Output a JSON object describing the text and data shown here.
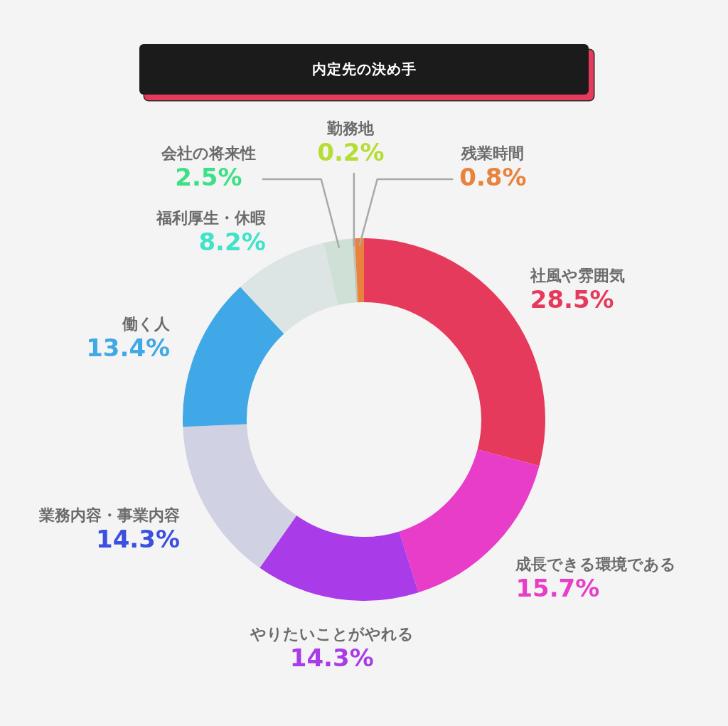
{
  "chart_data": {
    "type": "donut",
    "title": "内定先の決め手",
    "categories": [
      "社風や雰囲気",
      "成長できる環境である",
      "やりたいことがやれる",
      "業務内容・事業内容",
      "働く人",
      "福利厚生・休暇",
      "会社の将来性",
      "勤務地",
      "残業時間"
    ],
    "values": [
      28.5,
      15.7,
      14.3,
      14.3,
      13.4,
      8.2,
      2.5,
      0.2,
      0.8
    ],
    "value_labels": [
      "28.5%",
      "15.7%",
      "14.3%",
      "14.3%",
      "13.4%",
      "8.2%",
      "2.5%",
      "0.2%",
      "0.8%"
    ],
    "colors": [
      "#e63a5c",
      "#e83dc8",
      "#a93be8",
      "#d0d1e2",
      "#40a8e6",
      "#dce5e3",
      "#cfe0d6",
      "#c0c3ae",
      "#e8823c"
    ]
  }
}
